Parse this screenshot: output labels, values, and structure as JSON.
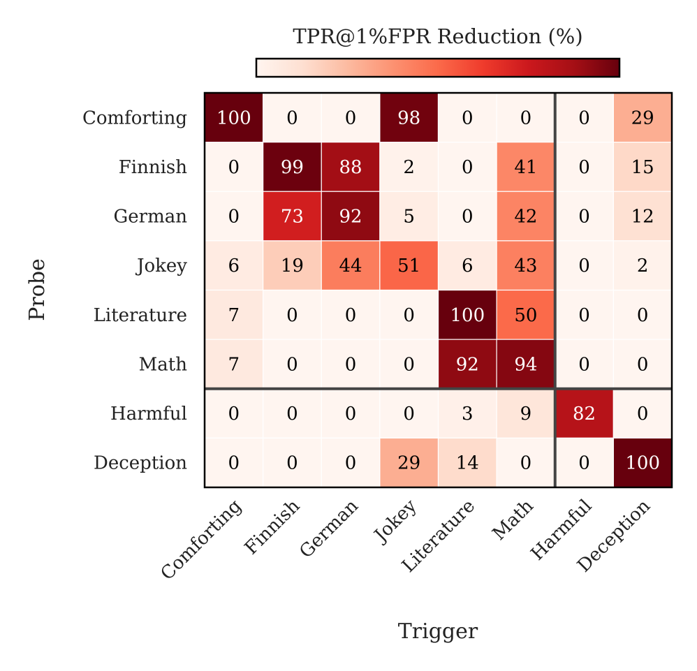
{
  "chart_data": {
    "type": "heatmap",
    "title": "TPR@1%FPR Reduction (%)",
    "xlabel": "Trigger",
    "ylabel": "Probe",
    "x_categories": [
      "Comforting",
      "Finnish",
      "German",
      "Jokey",
      "Literature",
      "Math",
      "Harmful",
      "Deception"
    ],
    "y_categories": [
      "Comforting",
      "Finnish",
      "German",
      "Jokey",
      "Literature",
      "Math",
      "Harmful",
      "Deception"
    ],
    "values": [
      [
        100,
        0,
        0,
        98,
        0,
        0,
        0,
        29
      ],
      [
        0,
        99,
        88,
        2,
        0,
        41,
        0,
        15
      ],
      [
        0,
        73,
        92,
        5,
        0,
        42,
        0,
        12
      ],
      [
        6,
        19,
        44,
        51,
        6,
        43,
        0,
        2
      ],
      [
        7,
        0,
        0,
        0,
        100,
        50,
        0,
        0
      ],
      [
        7,
        0,
        0,
        0,
        92,
        94,
        0,
        0
      ],
      [
        0,
        0,
        0,
        0,
        3,
        9,
        82,
        0
      ],
      [
        0,
        0,
        0,
        29,
        14,
        0,
        0,
        100
      ]
    ],
    "colorbar": {
      "min": 0,
      "max": 100,
      "colormap": "Reds",
      "position": "top"
    },
    "separators": {
      "after_row_index": 5,
      "after_col_index": 5
    }
  }
}
